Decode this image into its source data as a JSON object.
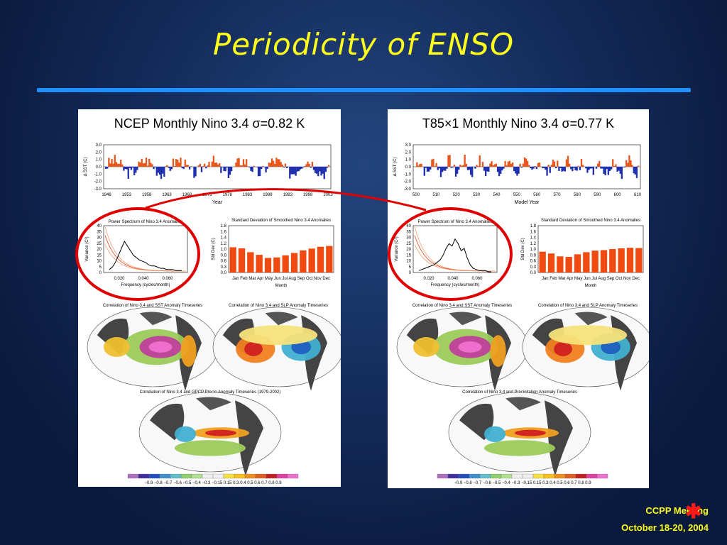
{
  "slide": {
    "title": "Periodicity of ENSO",
    "footer_line1": "CCPP Meeting",
    "footer_line2": "October 18-20, 2004",
    "accent": "#1e90ff",
    "title_color": "#ffff1a",
    "star_color": "#ff1a1a"
  },
  "left_panel": {
    "header": "NCEP Monthly Nino 3.4 σ=0.82 K",
    "ts_ylabel": "Δ SST (C)",
    "ts_xlabel": "Year",
    "ts_yticks": [
      "3.0",
      "2.0",
      "1.0",
      "0.0",
      "-1.0",
      "-2.0",
      "-3.0"
    ],
    "ts_xticks": [
      "1948",
      "1953",
      "1958",
      "1963",
      "1968",
      "1973",
      "1978",
      "1983",
      "1988",
      "1993",
      "1998",
      "2003"
    ],
    "ps_title": "Power Spectrum of Nino 3.4 Anomalies",
    "ps_ylabel": "Variance (C²)",
    "ps_xlabel": "Frequency (cycles/month)",
    "ps_yticks": [
      "40",
      "35",
      "30",
      "25",
      "20",
      "15",
      "10",
      "5",
      "0"
    ],
    "ps_xticks": [
      "0.020",
      "0.040",
      "0.060"
    ],
    "sd_title": "Standard Deviation of Smoothed Nino 3.4 Anomalies",
    "sd_ylabel": "Std Dev (C)",
    "sd_xlabel": "Month",
    "sd_yticks": [
      "1.8",
      "1.6",
      "1.4",
      "1.2",
      "1.0",
      "0.9",
      "0.6",
      "0.3",
      "0.0"
    ],
    "sd_xticks": "Jan Feb Mar Apr May Jun Jul Aug Sep Oct Nov Dec",
    "map1_title": "Correlation of Nino 3.4 and SST Anomaly Timeseries",
    "map2_title": "Correlation of Nino 3.4 and SLP Anomaly Timeseries",
    "map3_title": "Correlation of Nino 3.4 and GPCP Precip Anomaly Timeseries (1979-2002)",
    "colorbar": "−0.9 −0.8 −0.7 −0.6 −0.5 −0.4 −0.3 −0.15 0.15 0.3 0.4 0.5 0.6 0.7 0.8 0.9"
  },
  "right_panel": {
    "header": "T85×1 Monthly Nino 3.4 σ=0.77 K",
    "ts_ylabel": "Δ SST (C)",
    "ts_xlabel": "Model Year",
    "ts_yticks": [
      "3.0",
      "2.0",
      "1.0",
      "0.0",
      "-1.0",
      "-2.0",
      "-3.0"
    ],
    "ts_xticks": [
      "500",
      "510",
      "520",
      "530",
      "540",
      "550",
      "560",
      "570",
      "580",
      "590",
      "600",
      "610"
    ],
    "ps_title": "Power Spectrum of Nino 3.4 Anomalies",
    "ps_ylabel": "Variance (C²)",
    "ps_xlabel": "Frequency (cycles/month)",
    "ps_yticks": [
      "40",
      "35",
      "30",
      "25",
      "20",
      "15",
      "10",
      "5",
      "0"
    ],
    "ps_xticks": [
      "0.020",
      "0.040",
      "0.060"
    ],
    "sd_title": "Standard Deviation of Smoothed Nino 3.4 Anomalies",
    "sd_ylabel": "Std Dev (C)",
    "sd_xlabel": "Month",
    "sd_yticks": [
      "1.8",
      "1.6",
      "1.4",
      "1.2",
      "1.0",
      "0.9",
      "0.6",
      "0.3",
      "0.0"
    ],
    "sd_xticks": "Jan Feb Mar Apr May Jun Jul Aug Sep Oct Nov Dec",
    "map1_title": "Correlation of Nino 3.4 and SST Anomaly Timeseries",
    "map2_title": "Correlation of Nino 3.4 and SLP Anomaly Timeseries",
    "map3_title": "Correlation of Nino 3.4 and Precipitation Anomaly Timeseries",
    "colorbar": "−0.9 −0.8 −0.7 −0.6 −0.5 −0.4 −0.3 −0.15 0.15 0.3 0.4 0.5 0.6 0.7 0.8 0.9"
  },
  "chart_data": [
    {
      "type": "bar",
      "series": [
        {
          "name": "NCEP",
          "values": [
            0.97,
            0.93,
            0.78,
            0.68,
            0.56,
            0.58,
            0.66,
            0.75,
            0.85,
            0.92,
            0.99,
            1.02
          ]
        },
        {
          "name": "T85×1",
          "values": [
            0.8,
            0.73,
            0.62,
            0.6,
            0.7,
            0.78,
            0.84,
            0.86,
            0.9,
            0.93,
            0.95,
            0.94
          ]
        }
      ],
      "categories": [
        "Jan",
        "Feb",
        "Mar",
        "Apr",
        "May",
        "Jun",
        "Jul",
        "Aug",
        "Sep",
        "Oct",
        "Nov",
        "Dec"
      ],
      "title": "Standard Deviation of Smoothed Nino 3.4 Anomalies",
      "xlabel": "Month",
      "ylabel": "Std Dev (C)",
      "ylim": [
        0,
        1.8
      ]
    }
  ]
}
